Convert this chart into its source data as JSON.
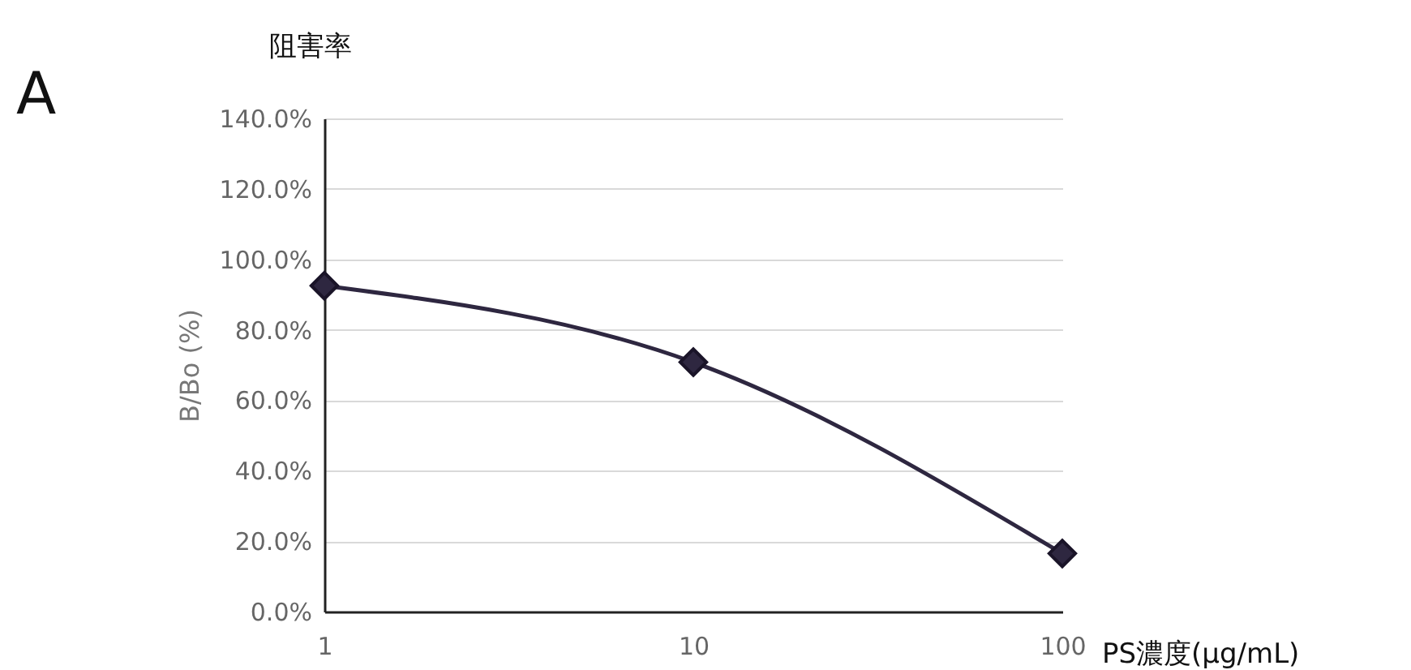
{
  "chart_data": {
    "type": "line",
    "title": "阻害率",
    "annotations": [
      "A"
    ],
    "xlabel": "PS濃度(μg/mL)",
    "ylabel": "B/Bo (%)",
    "x": [
      1,
      10,
      100
    ],
    "log": "x",
    "xlim": [
      1,
      100
    ],
    "xticks": [
      1,
      10,
      100
    ],
    "ylim": [
      0,
      140
    ],
    "yticks": [
      {
        "value": 0,
        "label": "0.0%"
      },
      {
        "value": 20,
        "label": "20.0%"
      },
      {
        "value": 40,
        "label": "40.0%"
      },
      {
        "value": 60,
        "label": "60.0%"
      },
      {
        "value": 80,
        "label": "80.0%"
      },
      {
        "value": 100,
        "label": "100.0%"
      },
      {
        "value": 120,
        "label": "120.0%"
      },
      {
        "value": 140,
        "label": "140.0%"
      }
    ],
    "series": [
      {
        "color": "#2e2740",
        "values": [
          92.5,
          70.8,
          16.5
        ]
      }
    ],
    "grid": "y",
    "marker": "diamond",
    "line_style": "solid",
    "legend": false
  }
}
